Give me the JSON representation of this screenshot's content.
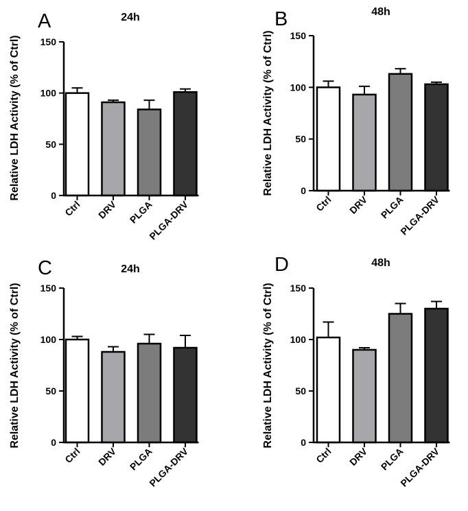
{
  "chart_data": [
    {
      "type": "bar",
      "panel": "A",
      "title": "24h",
      "ylabel": "Relative LDH Activity (% of Ctrl)",
      "xlabel": "",
      "ylim": [
        0,
        150
      ],
      "yticks": [
        0,
        50,
        100,
        150
      ],
      "categories": [
        "Ctrl",
        "DRV",
        "PLGA",
        "PLGA-DRV"
      ],
      "values": [
        100,
        91,
        84,
        101
      ],
      "errors": [
        5,
        2,
        9,
        3
      ],
      "colors": [
        "#ffffff",
        "#a6a6ab",
        "#7c7c7c",
        "#333333"
      ]
    },
    {
      "type": "bar",
      "panel": "B",
      "title": "48h",
      "ylabel": "Relative LDH Activity (% of Ctrl)",
      "xlabel": "",
      "ylim": [
        0,
        150
      ],
      "yticks": [
        0,
        50,
        100,
        150
      ],
      "categories": [
        "Ctrl",
        "DRV",
        "PLGA",
        "PLGA-DRV"
      ],
      "values": [
        100,
        93,
        113,
        103
      ],
      "errors": [
        6,
        8,
        5,
        2
      ],
      "colors": [
        "#ffffff",
        "#a6a6ab",
        "#7c7c7c",
        "#333333"
      ]
    },
    {
      "type": "bar",
      "panel": "C",
      "title": "24h",
      "ylabel": "Relative LDH Activity (% of Ctrl)",
      "xlabel": "",
      "ylim": [
        0,
        150
      ],
      "yticks": [
        0,
        50,
        100,
        150
      ],
      "categories": [
        "Ctrl",
        "DRV",
        "PLGA",
        "PLGA-DRV"
      ],
      "values": [
        100,
        88,
        96,
        92
      ],
      "errors": [
        3,
        5,
        9,
        12
      ],
      "colors": [
        "#ffffff",
        "#a6a6ab",
        "#7c7c7c",
        "#333333"
      ]
    },
    {
      "type": "bar",
      "panel": "D",
      "title": "48h",
      "ylabel": "Relative LDH Activity (% of Ctrl)",
      "xlabel": "",
      "ylim": [
        0,
        150
      ],
      "yticks": [
        0,
        50,
        100,
        150
      ],
      "categories": [
        "Ctrl",
        "DRV",
        "PLGA",
        "PLGA-DRV"
      ],
      "values": [
        102,
        90,
        125,
        130
      ],
      "errors": [
        15,
        2,
        10,
        7
      ],
      "colors": [
        "#ffffff",
        "#a6a6ab",
        "#7c7c7c",
        "#333333"
      ]
    }
  ]
}
